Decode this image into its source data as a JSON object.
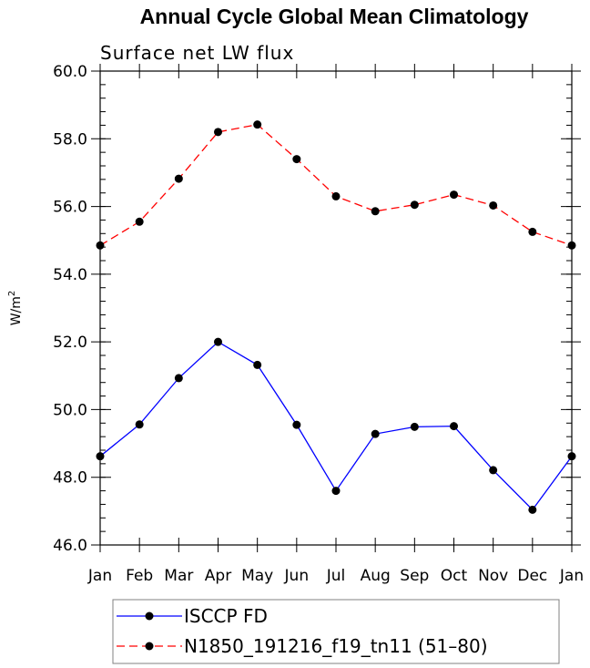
{
  "chart_data": {
    "type": "line",
    "title": "Annual Cycle Global Mean Climatology",
    "subtitle": "Surface net LW flux",
    "ylabel": "W/m",
    "ylabel_sup": "2",
    "xlabel": "",
    "categories": [
      "Jan",
      "Feb",
      "Mar",
      "Apr",
      "May",
      "Jun",
      "Jul",
      "Aug",
      "Sep",
      "Oct",
      "Nov",
      "Dec",
      "Jan"
    ],
    "ylim": [
      46.0,
      60.0
    ],
    "yticks": [
      "46.0",
      "48.0",
      "50.0",
      "52.0",
      "54.0",
      "56.0",
      "58.0",
      "60.0"
    ],
    "ytick_values": [
      46,
      48,
      50,
      52,
      54,
      56,
      58,
      60
    ],
    "series": [
      {
        "name": "ISCCP FD",
        "color": "#0000ff",
        "dash": "solid",
        "values": [
          48.62,
          49.56,
          50.93,
          52.0,
          51.32,
          49.55,
          47.6,
          49.28,
          49.49,
          49.51,
          48.21,
          47.04,
          48.62
        ]
      },
      {
        "name": "N1850_191216_f19_tn11 (51–80)",
        "color": "#ff0000",
        "dash": "dashed",
        "values": [
          54.85,
          55.55,
          56.82,
          58.2,
          58.42,
          57.4,
          56.3,
          55.86,
          56.05,
          56.35,
          56.03,
          55.25,
          54.85
        ]
      }
    ],
    "legend_position": "bottom-center",
    "marker": "filled-circle",
    "marker_color": "#000000"
  }
}
